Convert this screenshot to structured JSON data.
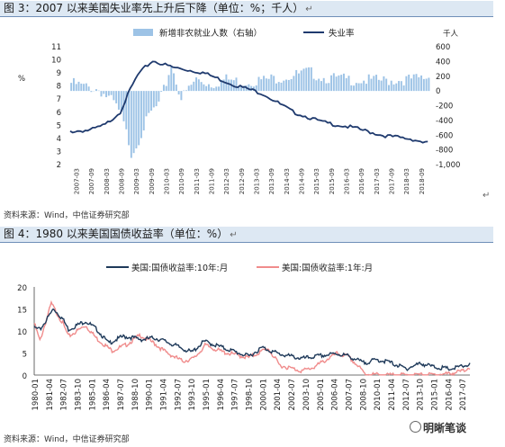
{
  "figure3": {
    "title": "图 3：2007 以来美国失业率先上升后下降（单位：%；千人）",
    "source": "资料来源：Wind，中信证券研究部",
    "left_unit": "%",
    "right_unit": "千人"
  },
  "figure4": {
    "title": "图 4：1980 以来美国国债收益率（单位：%）",
    "source": "资料来源：Wind，中信证券研究部"
  },
  "watermark": "明晰笔谈",
  "para_mark": "↵",
  "chart_data": [
    {
      "type": "bar+line",
      "title": "图 3：2007 以来美国失业率先上升后下降（单位：%；千人）",
      "xlabel": "",
      "ylabel_left": "%",
      "ylabel_right": "千人",
      "ylim_left": [
        2,
        11
      ],
      "ylim_right": [
        -1000,
        600
      ],
      "yticks_left": [
        2,
        3,
        4,
        5,
        6,
        7,
        8,
        9,
        10,
        11
      ],
      "yticks_right": [
        "600",
        "400",
        "200",
        "0",
        "-200",
        "-400",
        "-600",
        "-800",
        "-1,000"
      ],
      "x_tick_labels": [
        "2007-03",
        "2007-09",
        "2008-03",
        "2008-09",
        "2009-03",
        "2009-09",
        "2010-03",
        "2010-09",
        "2011-03",
        "2011-09",
        "2012-03",
        "2012-09",
        "2013-03",
        "2013-09",
        "2014-03",
        "2014-09",
        "2015-03",
        "2015-09",
        "2016-03",
        "2016-09",
        "2017-03",
        "2017-09",
        "2018-03",
        "2018-09"
      ],
      "legend_position": "top",
      "colors": {
        "bars": "#9dc3e6",
        "line": "#1f3a6e"
      },
      "series": [
        {
          "name": "新增非农就业人数（右轴）",
          "kind": "bar",
          "axis": "right",
          "anchor_dates": [
            "2007-01",
            "2007-06",
            "2007-12",
            "2008-06",
            "2008-09",
            "2008-12",
            "2009-01",
            "2009-03",
            "2009-06",
            "2009-09",
            "2009-12",
            "2010-03",
            "2010-05",
            "2010-09",
            "2011-03",
            "2011-09",
            "2012-03",
            "2012-09",
            "2013-06",
            "2014-06",
            "2014-12",
            "2015-06",
            "2016-06",
            "2017-06",
            "2018-06",
            "2018-12"
          ],
          "anchor_values": [
            150,
            100,
            60,
            -120,
            -300,
            -650,
            -800,
            -700,
            -450,
            -250,
            -150,
            150,
            400,
            -60,
            200,
            130,
            200,
            160,
            190,
            250,
            300,
            220,
            190,
            180,
            200,
            230
          ]
        },
        {
          "name": "失业率",
          "kind": "line",
          "axis": "left",
          "anchor_dates": [
            "2007-01",
            "2007-09",
            "2008-03",
            "2008-09",
            "2009-01",
            "2009-04",
            "2009-07",
            "2009-10",
            "2010-06",
            "2011-06",
            "2012-06",
            "2013-06",
            "2014-06",
            "2015-06",
            "2016-06",
            "2017-06",
            "2018-06",
            "2018-12"
          ],
          "anchor_values": [
            4.6,
            4.7,
            5.1,
            6.1,
            7.8,
            8.9,
            9.5,
            10.0,
            9.5,
            9.1,
            8.2,
            7.5,
            6.1,
            5.3,
            4.9,
            4.3,
            4.0,
            3.7
          ]
        }
      ]
    },
    {
      "type": "line",
      "title": "图 4：1980 以来美国国债收益率（单位：%）",
      "xlabel": "",
      "ylabel": "",
      "ylim": [
        0,
        20
      ],
      "yticks": [
        0,
        5,
        10,
        15,
        20
      ],
      "x_tick_labels": [
        "1980-01",
        "1981-04",
        "1982-07",
        "1983-10",
        "1985-01",
        "1986-04",
        "1987-07",
        "1988-10",
        "1990-01",
        "1991-04",
        "1992-07",
        "1993-10",
        "1995-01",
        "1996-04",
        "1997-07",
        "1998-10",
        "2000-01",
        "2001-04",
        "2002-07",
        "2003-10",
        "2005-01",
        "2006-04",
        "2007-07",
        "2008-10",
        "2010-01",
        "2011-04",
        "2012-07",
        "2013-10",
        "2015-01",
        "2016-04",
        "2017-07"
      ],
      "legend_position": "top",
      "colors": {
        "ten_year": "#1f3a5a",
        "one_year": "#f08c8c"
      },
      "series": [
        {
          "name": "美国:国债收益率:10年:月",
          "anchor_years": [
            1980.0,
            1980.5,
            1981.7,
            1982.5,
            1983.0,
            1984.5,
            1985.5,
            1986.5,
            1987.8,
            1988.5,
            1989.5,
            1990.5,
            1991.5,
            1993.8,
            1994.9,
            1996.5,
            1998.8,
            2000.0,
            2001.5,
            2003.5,
            2004.5,
            2006.5,
            2007.5,
            2008.9,
            2010.0,
            2011.0,
            2012.6,
            2013.9,
            2015.0,
            2016.5,
            2017.8,
            2018.0
          ],
          "anchor_values": [
            11.0,
            10.5,
            15.3,
            13.0,
            10.6,
            12.5,
            10.6,
            7.5,
            9.0,
            8.8,
            8.3,
            8.7,
            7.9,
            5.4,
            7.9,
            6.5,
            4.5,
            6.5,
            5.0,
            4.0,
            4.4,
            5.1,
            4.6,
            3.0,
            3.7,
            3.3,
            1.7,
            2.9,
            2.1,
            1.6,
            2.4,
            2.6
          ]
        },
        {
          "name": "美国:国债收益率:1年:月",
          "anchor_years": [
            1980.0,
            1980.5,
            1981.5,
            1982.5,
            1983.0,
            1984.5,
            1985.5,
            1986.8,
            1988.0,
            1989.3,
            1990.5,
            1991.5,
            1993.0,
            1994.0,
            1995.0,
            1996.5,
            1998.8,
            2000.5,
            2001.5,
            2002.5,
            2003.5,
            2004.5,
            2006.5,
            2007.5,
            2008.5,
            2009.0,
            2011.0,
            2015.0,
            2016.5,
            2017.8,
            2018.0
          ],
          "anchor_values": [
            12.0,
            8.0,
            16.5,
            12.0,
            9.0,
            11.5,
            8.5,
            5.8,
            7.0,
            9.3,
            7.5,
            5.5,
            3.4,
            4.0,
            7.0,
            5.5,
            4.2,
            6.3,
            2.5,
            1.8,
            1.2,
            2.0,
            5.1,
            4.5,
            2.0,
            0.5,
            0.2,
            0.3,
            0.6,
            1.3,
            2.0
          ]
        }
      ]
    }
  ]
}
